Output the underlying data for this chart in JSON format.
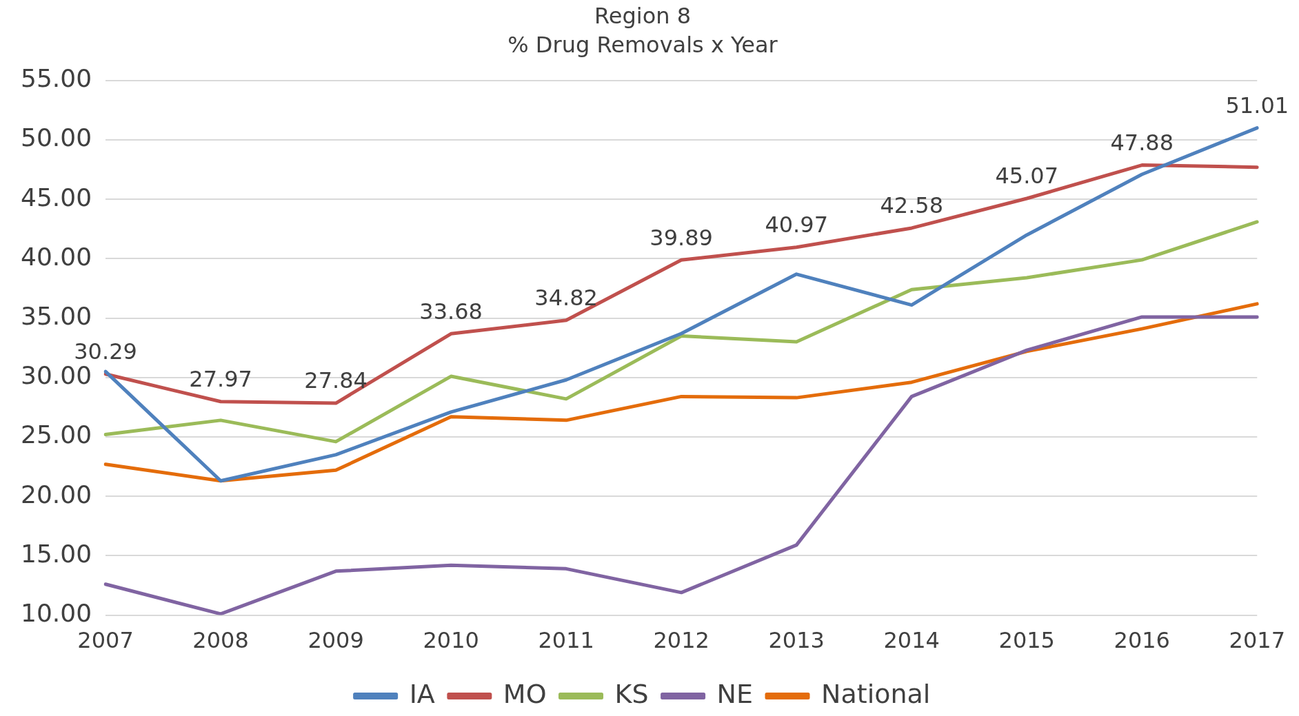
{
  "chart_data": {
    "type": "line",
    "title": "Region 8",
    "subtitle": "% Drug Removals x Year",
    "categories": [
      "2007",
      "2008",
      "2009",
      "2010",
      "2011",
      "2012",
      "2013",
      "2014",
      "2015",
      "2016",
      "2017"
    ],
    "series": [
      {
        "name": "IA",
        "color": "#4f81bd",
        "values": [
          30.5,
          21.3,
          23.5,
          27.1,
          29.8,
          33.7,
          38.7,
          36.1,
          42.0,
          47.1,
          51.01
        ],
        "value_labels": [
          null,
          null,
          null,
          null,
          null,
          null,
          null,
          null,
          null,
          null,
          "51.01"
        ]
      },
      {
        "name": "MO",
        "color": "#c0504d",
        "values": [
          30.29,
          27.97,
          27.84,
          33.68,
          34.82,
          39.89,
          40.97,
          42.58,
          45.07,
          47.88,
          47.7
        ],
        "value_labels": [
          "30.29",
          "27.97",
          "27.84",
          "33.68",
          "34.82",
          "39.89",
          "40.97",
          "42.58",
          "45.07",
          "47.88",
          null
        ]
      },
      {
        "name": "KS",
        "color": "#9bbb59",
        "values": [
          25.2,
          26.4,
          24.6,
          30.1,
          28.2,
          33.5,
          33.0,
          37.4,
          38.4,
          39.9,
          43.1
        ]
      },
      {
        "name": "NE",
        "color": "#8064a2",
        "values": [
          12.6,
          10.1,
          13.7,
          14.2,
          13.9,
          11.9,
          15.9,
          28.4,
          32.3,
          35.1,
          35.1
        ]
      },
      {
        "name": "National",
        "color": "#e46c0a",
        "values": [
          22.7,
          21.3,
          22.2,
          26.7,
          26.4,
          28.4,
          28.3,
          29.6,
          32.2,
          34.1,
          36.2
        ]
      }
    ],
    "ylim": [
      10,
      55
    ],
    "yticks": [
      {
        "value": 10,
        "label": "10.00"
      },
      {
        "value": 15,
        "label": "15.00"
      },
      {
        "value": 20,
        "label": "20.00"
      },
      {
        "value": 25,
        "label": "25.00"
      },
      {
        "value": 30,
        "label": "30.00"
      },
      {
        "value": 35,
        "label": "35.00"
      },
      {
        "value": 40,
        "label": "40.00"
      },
      {
        "value": 45,
        "label": "45.00"
      },
      {
        "value": 50,
        "label": "50.00"
      },
      {
        "value": 55,
        "label": "55.00"
      }
    ],
    "grid": "y",
    "legend": "bottom",
    "marker": "none",
    "line_style": "solid"
  }
}
